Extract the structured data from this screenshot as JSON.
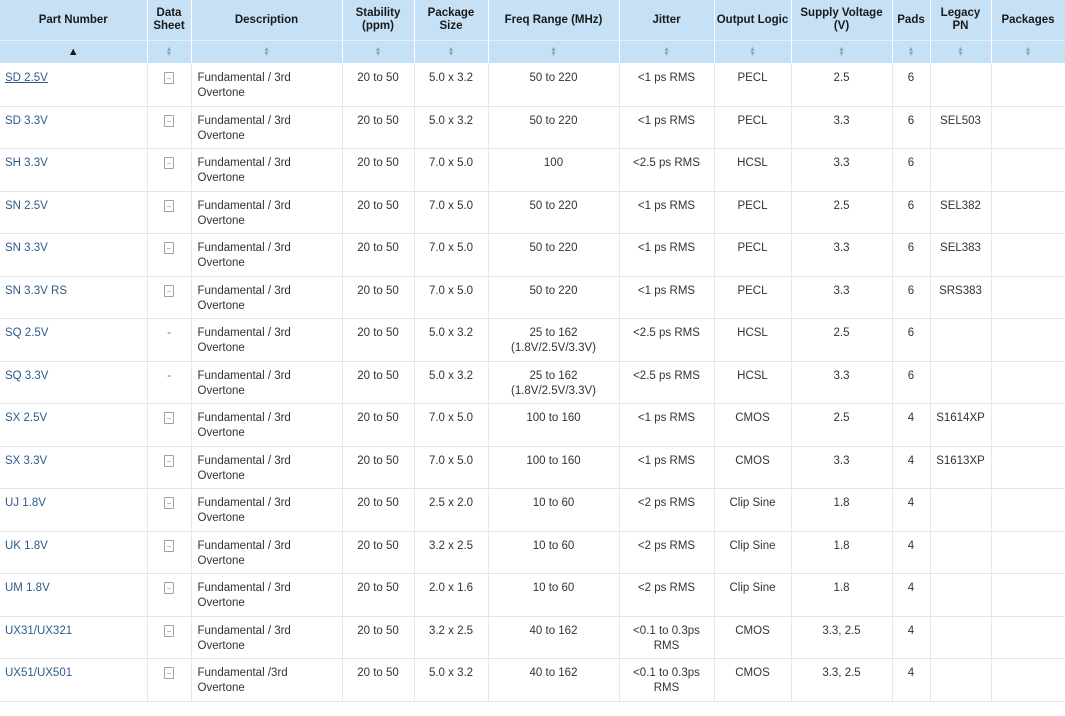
{
  "columns": [
    {
      "key": "part",
      "label": "Part Number"
    },
    {
      "key": "datasheet",
      "label": "Data Sheet"
    },
    {
      "key": "description",
      "label": "Description"
    },
    {
      "key": "stability",
      "label": "Stability (ppm)"
    },
    {
      "key": "package",
      "label": "Package Size"
    },
    {
      "key": "freq",
      "label": "Freq Range (MHz)"
    },
    {
      "key": "jitter",
      "label": "Jitter"
    },
    {
      "key": "output",
      "label": "Output Logic"
    },
    {
      "key": "voltage",
      "label": "Supply Voltage (V)"
    },
    {
      "key": "pads",
      "label": "Pads"
    },
    {
      "key": "legacy",
      "label": "Legacy PN"
    },
    {
      "key": "packages",
      "label": "Packages"
    }
  ],
  "sort": {
    "active_column": "part",
    "direction": "ascending"
  },
  "icons": {
    "datasheet": "document-icon",
    "sort_asc": "sort-ascending-icon",
    "sort_both": "sort-both-icon"
  },
  "colors": {
    "header_bg": "#c6e1f5",
    "link": "#2e5a8a"
  },
  "rows": [
    {
      "part": "SD 2.5V",
      "datasheet": "icon",
      "description": "Fundamental / 3rd Overtone",
      "stability": "20 to 50",
      "package": "5.0 x 3.2",
      "freq": "50 to 220",
      "jitter": "<1 ps RMS",
      "output": "PECL",
      "voltage": "2.5",
      "pads": "6",
      "legacy": "",
      "packages": ""
    },
    {
      "part": "SD 3.3V",
      "datasheet": "icon",
      "description": "Fundamental / 3rd Overtone",
      "stability": "20 to 50",
      "package": "5.0 x 3.2",
      "freq": "50 to 220",
      "jitter": "<1 ps RMS",
      "output": "PECL",
      "voltage": "3.3",
      "pads": "6",
      "legacy": "SEL503",
      "packages": ""
    },
    {
      "part": "SH 3.3V",
      "datasheet": "icon",
      "description": "Fundamental / 3rd Overtone",
      "stability": "20 to 50",
      "package": "7.0 x 5.0",
      "freq": "100",
      "jitter": "<2.5 ps RMS",
      "output": "HCSL",
      "voltage": "3.3",
      "pads": "6",
      "legacy": "",
      "packages": ""
    },
    {
      "part": "SN 2.5V",
      "datasheet": "icon",
      "description": "Fundamental / 3rd Overtone",
      "stability": "20 to 50",
      "package": "7.0 x 5.0",
      "freq": "50 to 220",
      "jitter": "<1 ps RMS",
      "output": "PECL",
      "voltage": "2.5",
      "pads": "6",
      "legacy": "SEL382",
      "packages": ""
    },
    {
      "part": "SN 3.3V",
      "datasheet": "icon",
      "description": "Fundamental / 3rd Overtone",
      "stability": "20 to 50",
      "package": "7.0 x 5.0",
      "freq": "50 to 220",
      "jitter": "<1 ps RMS",
      "output": "PECL",
      "voltage": "3.3",
      "pads": "6",
      "legacy": "SEL383",
      "packages": ""
    },
    {
      "part": "SN 3.3V RS",
      "datasheet": "icon",
      "description": "Fundamental / 3rd Overtone",
      "stability": "20 to 50",
      "package": "7.0 x 5.0",
      "freq": "50 to 220",
      "jitter": "<1 ps RMS",
      "output": "PECL",
      "voltage": "3.3",
      "pads": "6",
      "legacy": "SRS383",
      "packages": ""
    },
    {
      "part": "SQ 2.5V",
      "datasheet": "-",
      "description": "Fundamental / 3rd Overtone",
      "stability": "20 to 50",
      "package": "5.0 x 3.2",
      "freq": "25 to 162 (1.8V/2.5V/3.3V)",
      "jitter": "<2.5 ps RMS",
      "output": "HCSL",
      "voltage": "2.5",
      "pads": "6",
      "legacy": "",
      "packages": ""
    },
    {
      "part": "SQ 3.3V",
      "datasheet": "-",
      "description": "Fundamental / 3rd Overtone",
      "stability": "20 to 50",
      "package": "5.0 x 3.2",
      "freq": "25 to 162 (1.8V/2.5V/3.3V)",
      "jitter": "<2.5 ps RMS",
      "output": "HCSL",
      "voltage": "3.3",
      "pads": "6",
      "legacy": "",
      "packages": ""
    },
    {
      "part": "SX 2.5V",
      "datasheet": "icon",
      "description": "Fundamental / 3rd Overtone",
      "stability": "20 to 50",
      "package": "7.0 x 5.0",
      "freq": "100 to 160",
      "jitter": "<1 ps RMS",
      "output": "CMOS",
      "voltage": "2.5",
      "pads": "4",
      "legacy": "S1614XP",
      "packages": ""
    },
    {
      "part": "SX 3.3V",
      "datasheet": "icon",
      "description": "Fundamental / 3rd Overtone",
      "stability": "20 to 50",
      "package": "7.0 x 5.0",
      "freq": "100 to 160",
      "jitter": "<1 ps RMS",
      "output": "CMOS",
      "voltage": "3.3",
      "pads": "4",
      "legacy": "S1613XP",
      "packages": ""
    },
    {
      "part": "UJ 1.8V",
      "datasheet": "icon",
      "description": "Fundamental / 3rd Overtone",
      "stability": "20 to 50",
      "package": "2.5 x 2.0",
      "freq": "10 to 60",
      "jitter": "<2 ps RMS",
      "output": "Clip Sine",
      "voltage": "1.8",
      "pads": "4",
      "legacy": "",
      "packages": ""
    },
    {
      "part": "UK 1.8V",
      "datasheet": "icon",
      "description": "Fundamental / 3rd Overtone",
      "stability": "20 to 50",
      "package": "3.2 x 2.5",
      "freq": "10 to 60",
      "jitter": "<2 ps RMS",
      "output": "Clip Sine",
      "voltage": "1.8",
      "pads": "4",
      "legacy": "",
      "packages": ""
    },
    {
      "part": "UM 1.8V",
      "datasheet": "icon",
      "description": "Fundamental / 3rd Overtone",
      "stability": "20 to 50",
      "package": "2.0 x 1.6",
      "freq": "10 to 60",
      "jitter": "<2 ps RMS",
      "output": "Clip Sine",
      "voltage": "1.8",
      "pads": "4",
      "legacy": "",
      "packages": ""
    },
    {
      "part": "UX31/UX321",
      "datasheet": "icon",
      "description": "Fundamental / 3rd Overtone",
      "stability": "20 to 50",
      "package": "3.2 x 2.5",
      "freq": "40 to 162",
      "jitter": "<0.1 to 0.3ps RMS",
      "output": "CMOS",
      "voltage": "3.3, 2.5",
      "pads": "4",
      "legacy": "",
      "packages": ""
    },
    {
      "part": "UX51/UX501",
      "datasheet": "icon",
      "description": "Fundamental /3rd Overtone",
      "stability": "20 to 50",
      "package": "5.0 x 3.2",
      "freq": "40 to 162",
      "jitter": "<0.1 to 0.3ps RMS",
      "output": "CMOS",
      "voltage": "3.3, 2.5",
      "pads": "4",
      "legacy": "",
      "packages": ""
    }
  ]
}
